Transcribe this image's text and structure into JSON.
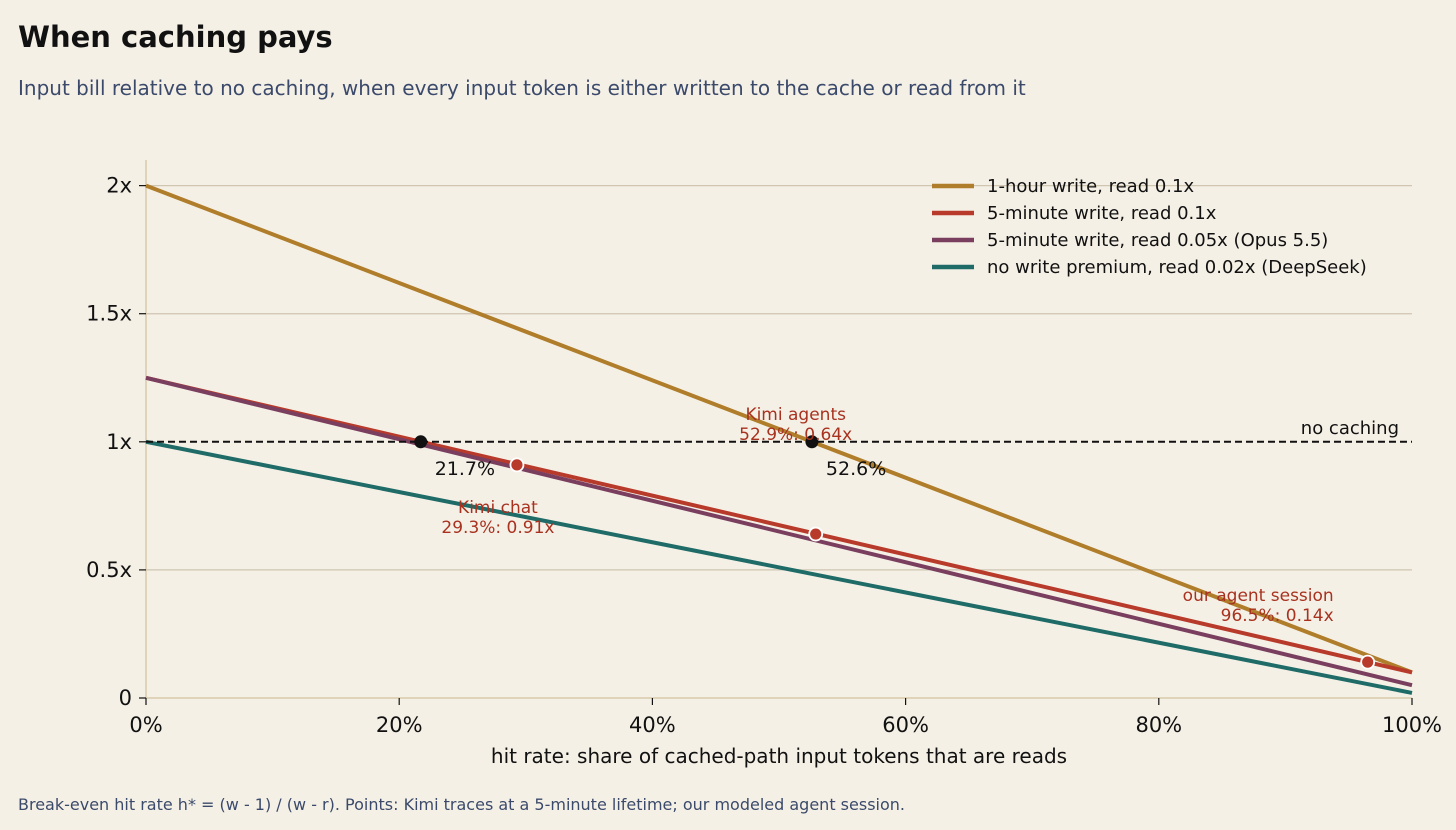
{
  "title": "When caching pays",
  "subtitle": "Input bill relative to no caching, when every input token is either written to the cache or read from it",
  "footnote": "Break-even hit rate h* = (w - 1) / (w - r). Points: Kimi traces at a 5-minute lifetime; our modeled agent session.",
  "chart_data": {
    "type": "line",
    "xlabel": "hit rate: share of cached-path input tokens that are reads",
    "ylabel": "",
    "xlim": [
      0,
      1
    ],
    "ylim": [
      0,
      2.1
    ],
    "x_ticks": [
      {
        "value": 0,
        "label": "0%"
      },
      {
        "value": 0.2,
        "label": "20%"
      },
      {
        "value": 0.4,
        "label": "40%"
      },
      {
        "value": 0.6,
        "label": "60%"
      },
      {
        "value": 0.8,
        "label": "80%"
      },
      {
        "value": 1.0,
        "label": "100%"
      }
    ],
    "y_ticks": [
      {
        "value": 0,
        "label": "0"
      },
      {
        "value": 0.5,
        "label": "0.5x"
      },
      {
        "value": 1,
        "label": "1x"
      },
      {
        "value": 1.5,
        "label": "1.5x"
      },
      {
        "value": 2,
        "label": "2x"
      }
    ],
    "grid": "horizontal",
    "legend_position": "top-right",
    "series": [
      {
        "name": "1-hour write, read 0.1x",
        "color": "#b07d2b",
        "x": [
          0,
          1
        ],
        "y": [
          2.0,
          0.1
        ]
      },
      {
        "name": "5-minute write, read 0.1x",
        "color": "#b83a2a",
        "x": [
          0,
          1
        ],
        "y": [
          1.25,
          0.1
        ]
      },
      {
        "name": "5-minute write, read 0.05x (Opus 5.5)",
        "color": "#7a3f5e",
        "x": [
          0,
          1
        ],
        "y": [
          1.25,
          0.05
        ]
      },
      {
        "name": "no write premium, read 0.02x (DeepSeek)",
        "color": "#1f6b67",
        "x": [
          0,
          1
        ],
        "y": [
          1.0,
          0.02
        ]
      }
    ],
    "reference_line": {
      "y": 1,
      "label": "no caching",
      "color": "#111111"
    },
    "break_even_points": [
      {
        "x": 0.217,
        "y": 1,
        "label": "21.7%"
      },
      {
        "x": 0.526,
        "y": 1,
        "label": "52.6%"
      }
    ],
    "points": [
      {
        "x": 0.293,
        "y": 0.91,
        "name": "Kimi chat",
        "value_label": "29.3%: 0.91x"
      },
      {
        "x": 0.529,
        "y": 0.64,
        "name": "Kimi agents",
        "value_label": "52.9%: 0.64x"
      },
      {
        "x": 0.965,
        "y": 0.14,
        "name": "our agent session",
        "value_label": "96.5%: 0.14x"
      }
    ],
    "point_color": "#b83a2a",
    "annotation_color": "#a8321f"
  }
}
